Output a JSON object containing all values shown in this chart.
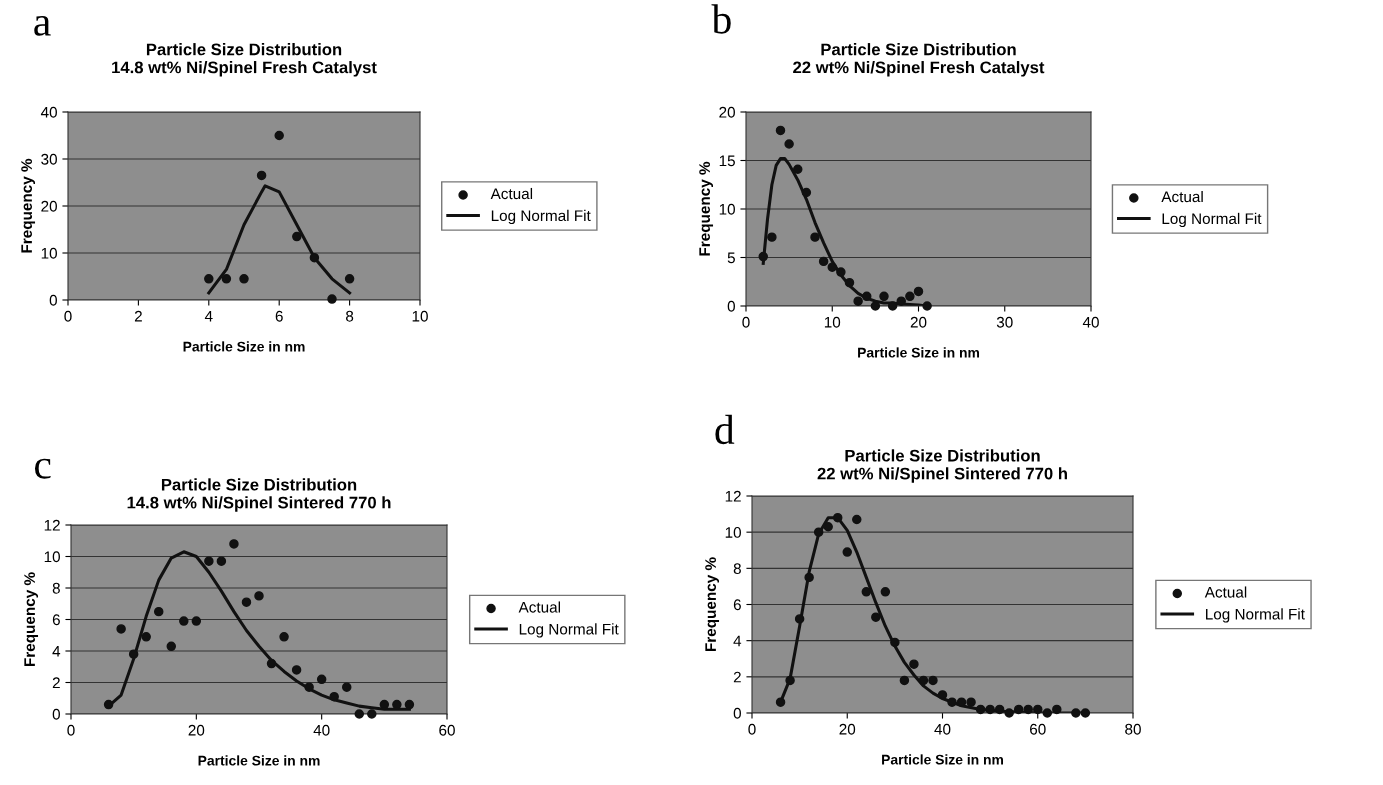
{
  "chart_data": [
    {
      "type": "scatter",
      "title": "Particle Size Distribution",
      "subtitle": "14.8 wt% Ni/Spinel Fresh Catalyst",
      "xlabel": "Particle Size in nm",
      "ylabel": "Frequency %",
      "annotations": [
        "a"
      ],
      "xlim": [
        0,
        10
      ],
      "xticks": [
        0,
        2,
        4,
        6,
        8,
        10
      ],
      "ylim": [
        0,
        40
      ],
      "yticks": [
        0,
        10,
        20,
        30,
        40
      ],
      "grid": "y",
      "legend": "right",
      "marker": "circle",
      "series": [
        {
          "name": "Actual",
          "color": "#111111",
          "x": [
            4,
            4.5,
            5,
            5.5,
            6,
            6.5,
            7,
            7.5,
            8
          ],
          "values": [
            4.5,
            4.5,
            4.5,
            26.5,
            35,
            13.5,
            9,
            0.2,
            4.5
          ]
        },
        {
          "name": "Log Normal Fit",
          "type": "line",
          "color": "#111111",
          "marker": "none",
          "line_style": "solid",
          "x": [
            4,
            4.5,
            5,
            5.5,
            5.6,
            6,
            6.5,
            7,
            7.5,
            8
          ],
          "values": [
            1.5,
            6.5,
            16,
            23,
            24.3,
            23,
            16,
            9,
            4.5,
            1.5
          ]
        }
      ]
    },
    {
      "type": "scatter",
      "title": "Particle Size Distribution",
      "subtitle": "22 wt% Ni/Spinel Fresh Catalyst",
      "xlabel": "Particle Size in nm",
      "ylabel": "Frequency %",
      "annotations": [
        "b"
      ],
      "xlim": [
        0,
        40
      ],
      "xticks": [
        0,
        10,
        20,
        30,
        40
      ],
      "ylim": [
        0,
        20
      ],
      "yticks": [
        0,
        5,
        10,
        15,
        20
      ],
      "grid": "y",
      "legend": "right",
      "marker": "circle",
      "series": [
        {
          "name": "Actual",
          "color": "#111111",
          "x": [
            2,
            3,
            4,
            5,
            6,
            7,
            8,
            9,
            10,
            11,
            12,
            13,
            14,
            15,
            16,
            17,
            18,
            19,
            20,
            21
          ],
          "values": [
            5.1,
            7.1,
            18.1,
            16.7,
            14.1,
            11.7,
            7.1,
            4.6,
            4.0,
            3.5,
            2.4,
            0.5,
            1.0,
            0,
            1.0,
            0,
            0.5,
            1.0,
            1.5,
            0
          ]
        },
        {
          "name": "Log Normal Fit",
          "type": "line",
          "color": "#111111",
          "marker": "none",
          "line_style": "solid",
          "x": [
            2,
            2.5,
            3,
            3.5,
            4,
            4.5,
            5,
            6,
            7,
            8,
            9,
            10,
            11,
            12,
            13,
            14,
            15,
            16,
            17,
            18,
            20,
            21
          ],
          "values": [
            4.4,
            9,
            12.5,
            14.5,
            15.2,
            15.2,
            14.6,
            13,
            11,
            8.6,
            6.5,
            4.6,
            3.2,
            2.1,
            1.3,
            0.8,
            0.5,
            0.3,
            0.3,
            0.2,
            0.1,
            0
          ]
        }
      ]
    },
    {
      "type": "scatter",
      "title": "Particle Size Distribution",
      "subtitle": "14.8 wt% Ni/Spinel Sintered 770 h",
      "xlabel": "Particle Size in nm",
      "ylabel": "Frequency %",
      "annotations": [
        "c"
      ],
      "xlim": [
        0,
        60
      ],
      "xticks": [
        0,
        20,
        40,
        60
      ],
      "ylim": [
        0,
        12
      ],
      "yticks": [
        0,
        2,
        4,
        6,
        8,
        10,
        12
      ],
      "grid": "y",
      "legend": "right",
      "marker": "circle",
      "series": [
        {
          "name": "Actual",
          "color": "#111111",
          "x": [
            6,
            8,
            10,
            12,
            14,
            16,
            18,
            20,
            22,
            24,
            26,
            28,
            30,
            32,
            34,
            36,
            38,
            40,
            42,
            44,
            46,
            48,
            50,
            52,
            54
          ],
          "values": [
            0.6,
            5.4,
            3.8,
            4.9,
            6.5,
            4.3,
            5.9,
            5.9,
            9.7,
            9.7,
            10.8,
            7.1,
            7.5,
            3.2,
            4.9,
            2.8,
            1.7,
            2.2,
            1.1,
            1.7,
            0,
            0,
            0.6,
            0.6,
            0.6
          ]
        },
        {
          "name": "Log Normal Fit",
          "type": "line",
          "color": "#111111",
          "marker": "none",
          "line_style": "solid",
          "x": [
            6,
            8,
            10,
            12,
            14,
            16,
            18,
            20,
            22,
            24,
            26,
            28,
            30,
            32,
            34,
            36,
            38,
            40,
            42,
            44,
            46,
            48,
            50,
            52,
            54
          ],
          "values": [
            0.5,
            1.2,
            3.5,
            6.2,
            8.5,
            9.9,
            10.3,
            10.0,
            9.0,
            7.8,
            6.5,
            5.3,
            4.3,
            3.4,
            2.7,
            2.1,
            1.6,
            1.2,
            0.9,
            0.7,
            0.5,
            0.4,
            0.3,
            0.3,
            0.3
          ]
        }
      ]
    },
    {
      "type": "scatter",
      "title": "Particle Size Distribution",
      "subtitle": "22 wt% Ni/Spinel Sintered 770 h",
      "xlabel": "Particle Size in nm",
      "ylabel": "Frequency %",
      "annotations": [
        "d"
      ],
      "xlim": [
        0,
        80
      ],
      "xticks": [
        0,
        20,
        40,
        60,
        80
      ],
      "ylim": [
        0,
        12
      ],
      "yticks": [
        0,
        2,
        4,
        6,
        8,
        10,
        12
      ],
      "grid": "y",
      "legend": "right",
      "marker": "circle",
      "series": [
        {
          "name": "Actual",
          "color": "#111111",
          "x": [
            6,
            8,
            10,
            12,
            14,
            16,
            18,
            20,
            22,
            24,
            26,
            28,
            30,
            32,
            34,
            36,
            38,
            40,
            42,
            44,
            46,
            48,
            50,
            52,
            54,
            56,
            58,
            60,
            62,
            64,
            68,
            70
          ],
          "values": [
            0.6,
            1.8,
            5.2,
            7.5,
            10.0,
            10.3,
            10.8,
            8.9,
            10.7,
            6.7,
            5.3,
            6.7,
            3.9,
            1.8,
            2.7,
            1.8,
            1.8,
            1.0,
            0.6,
            0.6,
            0.6,
            0.2,
            0.2,
            0.2,
            0,
            0.2,
            0.2,
            0.2,
            0,
            0.2,
            0,
            0
          ]
        },
        {
          "name": "Log Normal Fit",
          "type": "line",
          "color": "#111111",
          "marker": "none",
          "line_style": "solid",
          "x": [
            6,
            8,
            10,
            12,
            14,
            16,
            18,
            20,
            22,
            24,
            26,
            28,
            30,
            32,
            34,
            36,
            38,
            40,
            44,
            48,
            52,
            56,
            60,
            70
          ],
          "values": [
            0.6,
            1.9,
            4.8,
            7.8,
            9.9,
            10.8,
            10.8,
            10.1,
            8.9,
            7.5,
            6.1,
            4.8,
            3.7,
            2.8,
            2.1,
            1.5,
            1.1,
            0.8,
            0.4,
            0.2,
            0.1,
            0.05,
            0,
            0
          ]
        }
      ]
    }
  ]
}
